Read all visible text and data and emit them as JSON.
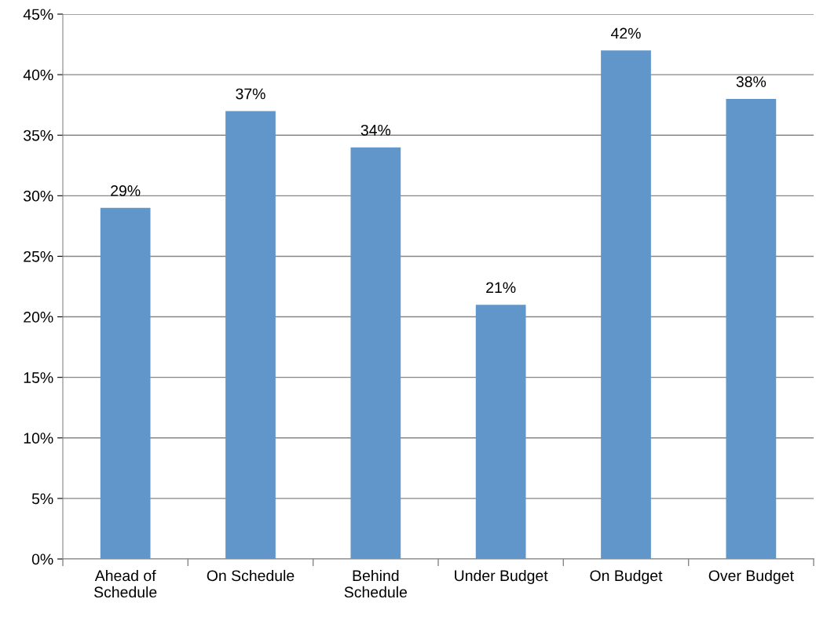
{
  "chart_data": {
    "type": "bar",
    "categories": [
      "Ahead of\nSchedule",
      "On Schedule",
      "Behind\nSchedule",
      "Under Budget",
      "On Budget",
      "Over Budget"
    ],
    "values": [
      29,
      37,
      34,
      21,
      42,
      38
    ],
    "value_labels": [
      "29%",
      "37%",
      "34%",
      "21%",
      "42%",
      "38%"
    ],
    "color": "#6096c9",
    "ylim": [
      0,
      45
    ],
    "yticks": [
      {
        "value": 0,
        "label": "0%"
      },
      {
        "value": 5,
        "label": "5%"
      },
      {
        "value": 10,
        "label": "10%"
      },
      {
        "value": 15,
        "label": "15%"
      },
      {
        "value": 20,
        "label": "20%"
      },
      {
        "value": 25,
        "label": "25%"
      },
      {
        "value": 30,
        "label": "30%"
      },
      {
        "value": 35,
        "label": "35%"
      },
      {
        "value": 40,
        "label": "40%"
      },
      {
        "value": 45,
        "label": "45%"
      }
    ],
    "grid": "y",
    "legend": false
  }
}
